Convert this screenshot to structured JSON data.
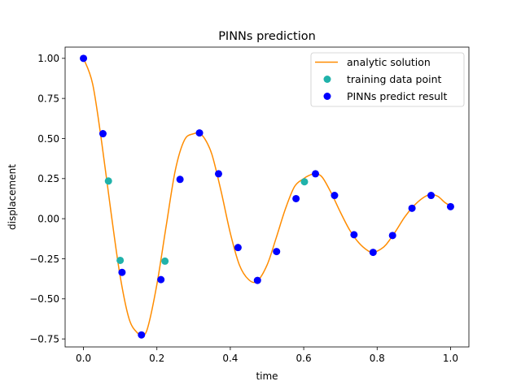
{
  "chart_data": {
    "type": "scatter",
    "title": "PINNs prediction",
    "xlabel": "time",
    "ylabel": "displacement",
    "xlim": [
      -0.05,
      1.05
    ],
    "ylim": [
      -0.8,
      1.07
    ],
    "xticks": [
      0.0,
      0.2,
      0.4,
      0.6,
      0.8,
      1.0
    ],
    "xtick_labels": [
      "0.0",
      "0.2",
      "0.4",
      "0.6",
      "0.8",
      "1.0"
    ],
    "yticks": [
      -0.75,
      -0.5,
      -0.25,
      0.0,
      0.25,
      0.5,
      0.75,
      1.0
    ],
    "ytick_labels": [
      "−0.75",
      "−0.50",
      "−0.25",
      "0.00",
      "0.25",
      "0.50",
      "0.75",
      "1.00"
    ],
    "grid": false,
    "legend_position": "top-right",
    "series": [
      {
        "name": "analytic solution",
        "kind": "line",
        "color": "#ff8c00",
        "x": [
          0.0,
          0.025,
          0.05,
          0.075,
          0.1,
          0.125,
          0.15,
          0.16,
          0.175,
          0.2,
          0.225,
          0.25,
          0.275,
          0.3,
          0.315,
          0.33,
          0.35,
          0.375,
          0.4,
          0.425,
          0.45,
          0.473,
          0.5,
          0.525,
          0.55,
          0.575,
          0.6,
          0.615,
          0.63,
          0.65,
          0.675,
          0.7,
          0.725,
          0.75,
          0.775,
          0.79,
          0.81,
          0.825,
          0.85,
          0.875,
          0.9,
          0.925,
          0.945,
          0.965,
          0.985,
          1.0
        ],
        "y": [
          1.0,
          0.84,
          0.47,
          0.04,
          -0.36,
          -0.63,
          -0.72,
          -0.73,
          -0.68,
          -0.41,
          -0.05,
          0.3,
          0.49,
          0.53,
          0.53,
          0.5,
          0.4,
          0.17,
          -0.09,
          -0.29,
          -0.38,
          -0.39,
          -0.29,
          -0.12,
          0.06,
          0.2,
          0.25,
          0.27,
          0.28,
          0.26,
          0.16,
          0.04,
          -0.07,
          -0.15,
          -0.2,
          -0.21,
          -0.19,
          -0.16,
          -0.08,
          0.01,
          0.08,
          0.13,
          0.15,
          0.14,
          0.1,
          0.08
        ]
      },
      {
        "name": "training data point",
        "kind": "scatter",
        "color": "#20b2aa",
        "x": [
          0.068,
          0.1,
          0.222,
          0.602
        ],
        "y": [
          0.235,
          -0.26,
          -0.265,
          0.23
        ]
      },
      {
        "name": "PINNs predict result",
        "kind": "scatter",
        "color": "#0000ff",
        "x": [
          0.0,
          0.053,
          0.105,
          0.158,
          0.211,
          0.263,
          0.316,
          0.368,
          0.421,
          0.474,
          0.526,
          0.579,
          0.632,
          0.684,
          0.737,
          0.789,
          0.842,
          0.895,
          0.947,
          1.0
        ],
        "y": [
          1.0,
          0.53,
          -0.335,
          -0.725,
          -0.38,
          0.245,
          0.535,
          0.28,
          -0.18,
          -0.385,
          -0.205,
          0.125,
          0.28,
          0.145,
          -0.1,
          -0.21,
          -0.105,
          0.065,
          0.145,
          0.075
        ]
      }
    ]
  }
}
